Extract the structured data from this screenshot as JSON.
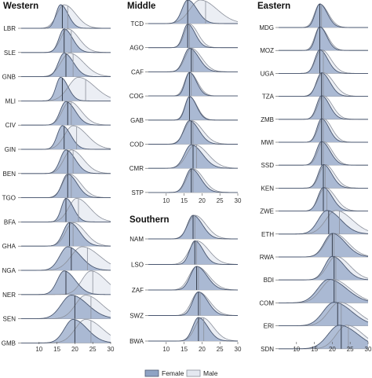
{
  "legend": {
    "female_label": "Female",
    "male_label": "Male",
    "female_color": "#8fa3c4",
    "male_color": "#e4e8f0",
    "female_line": "#4a5770",
    "male_line": "#8a8f9a"
  },
  "chart_data": [
    {
      "type": "area",
      "title": "Western",
      "xlim": [
        5,
        30
      ],
      "xticks": [
        10,
        15,
        20,
        25,
        30
      ],
      "series_names": [
        "Female",
        "Male"
      ],
      "countries": [
        {
          "code": "LBR",
          "female": {
            "mode": 16.0,
            "sd": 1.6,
            "median": 16.5
          },
          "male": {
            "mode": 17.0,
            "sd": 2.5,
            "median": 18.0
          }
        },
        {
          "code": "SLE",
          "female": {
            "mode": 17.0,
            "sd": 1.8,
            "median": 17.0
          },
          "male": {
            "mode": 18.0,
            "sd": 2.4,
            "median": 19.0
          }
        },
        {
          "code": "GNB",
          "female": {
            "mode": 17.0,
            "sd": 2.0,
            "median": 17.5
          },
          "male": {
            "mode": 18.5,
            "sd": 3.0,
            "median": 19.5
          }
        },
        {
          "code": "MLI",
          "female": {
            "mode": 16.0,
            "sd": 1.6,
            "median": 16.5
          },
          "male": {
            "mode": 21.0,
            "sd": 3.5,
            "median": 23.0
          }
        },
        {
          "code": "CIV",
          "female": {
            "mode": 17.5,
            "sd": 2.0,
            "median": 18.0
          },
          "male": {
            "mode": 18.5,
            "sd": 2.5,
            "median": 19.0
          }
        },
        {
          "code": "GIN",
          "female": {
            "mode": 16.5,
            "sd": 1.8,
            "median": 17.0
          },
          "male": {
            "mode": 19.5,
            "sd": 3.0,
            "median": 20.5
          }
        },
        {
          "code": "BEN",
          "female": {
            "mode": 17.5,
            "sd": 2.0,
            "median": 18.0
          },
          "male": {
            "mode": 19.0,
            "sd": 2.6,
            "median": 19.5
          }
        },
        {
          "code": "TGO",
          "female": {
            "mode": 18.0,
            "sd": 2.0,
            "median": 18.0
          },
          "male": {
            "mode": 18.5,
            "sd": 2.4,
            "median": 19.0
          }
        },
        {
          "code": "BFA",
          "female": {
            "mode": 17.5,
            "sd": 1.6,
            "median": 17.5
          },
          "male": {
            "mode": 20.5,
            "sd": 2.8,
            "median": 21.0
          }
        },
        {
          "code": "GHA",
          "female": {
            "mode": 18.5,
            "sd": 2.2,
            "median": 18.5
          },
          "male": {
            "mode": 19.5,
            "sd": 2.6,
            "median": 19.5
          }
        },
        {
          "code": "NGA",
          "female": {
            "mode": 18.0,
            "sd": 2.8,
            "median": 19.0
          },
          "male": {
            "mode": 22.0,
            "sd": 3.8,
            "median": 23.5
          }
        },
        {
          "code": "NER",
          "female": {
            "mode": 17.0,
            "sd": 2.4,
            "median": 17.5
          },
          "male": {
            "mode": 24.5,
            "sd": 3.2,
            "median": 25.0
          }
        },
        {
          "code": "SEN",
          "female": {
            "mode": 19.0,
            "sd": 3.5,
            "median": 20.0
          },
          "male": {
            "mode": 23.0,
            "sd": 3.5,
            "median": 24.5
          }
        },
        {
          "code": "GMB",
          "female": {
            "mode": 19.5,
            "sd": 3.0,
            "median": 20.0
          },
          "male": {
            "mode": 23.0,
            "sd": 3.6,
            "median": 24.5
          }
        }
      ]
    },
    {
      "type": "area",
      "title": "Middle",
      "xlim": [
        5,
        30
      ],
      "xticks": [
        10,
        15,
        20,
        25,
        30
      ],
      "series_names": [
        "Female",
        "Male"
      ],
      "countries": [
        {
          "code": "TCD",
          "female": {
            "mode": 16.0,
            "sd": 2.0,
            "median": 16.0
          },
          "male": {
            "mode": 19.5,
            "sd": 3.6,
            "median": 21.0
          }
        },
        {
          "code": "AGO",
          "female": {
            "mode": 16.0,
            "sd": 1.6,
            "median": 16.0
          },
          "male": {
            "mode": 16.5,
            "sd": 1.8,
            "median": 16.5
          }
        },
        {
          "code": "CAF",
          "female": {
            "mode": 16.5,
            "sd": 2.0,
            "median": 17.0
          },
          "male": {
            "mode": 17.0,
            "sd": 2.2,
            "median": 17.5
          }
        },
        {
          "code": "COG",
          "female": {
            "mode": 16.5,
            "sd": 1.5,
            "median": 16.5
          },
          "male": {
            "mode": 16.5,
            "sd": 1.7,
            "median": 17.0
          }
        },
        {
          "code": "GAB",
          "female": {
            "mode": 16.5,
            "sd": 1.5,
            "median": 16.5
          },
          "male": {
            "mode": 16.5,
            "sd": 1.6,
            "median": 16.5
          }
        },
        {
          "code": "COD",
          "female": {
            "mode": 16.5,
            "sd": 2.0,
            "median": 17.0
          },
          "male": {
            "mode": 17.0,
            "sd": 2.4,
            "median": 17.5
          }
        },
        {
          "code": "CMR",
          "female": {
            "mode": 17.0,
            "sd": 2.4,
            "median": 17.5
          },
          "male": {
            "mode": 18.0,
            "sd": 2.8,
            "median": 18.5
          }
        },
        {
          "code": "STP",
          "female": {
            "mode": 17.0,
            "sd": 2.0,
            "median": 17.0
          },
          "male": {
            "mode": 17.5,
            "sd": 2.2,
            "median": 17.5
          }
        }
      ]
    },
    {
      "type": "area",
      "title": "Southern",
      "xlim": [
        5,
        30
      ],
      "xticks": [
        10,
        15,
        20,
        25,
        30
      ],
      "series_names": [
        "Female",
        "Male"
      ],
      "countries": [
        {
          "code": "NAM",
          "female": {
            "mode": 17.5,
            "sd": 2.0,
            "median": 17.5
          },
          "male": {
            "mode": 18.0,
            "sd": 2.4,
            "median": 18.0
          }
        },
        {
          "code": "LSO",
          "female": {
            "mode": 18.0,
            "sd": 1.8,
            "median": 18.0
          },
          "male": {
            "mode": 18.5,
            "sd": 2.6,
            "median": 18.5
          }
        },
        {
          "code": "ZAF",
          "female": {
            "mode": 18.5,
            "sd": 2.2,
            "median": 18.5
          },
          "male": {
            "mode": 18.5,
            "sd": 2.6,
            "median": 19.0
          }
        },
        {
          "code": "SWZ",
          "female": {
            "mode": 19.0,
            "sd": 2.0,
            "median": 19.0
          },
          "male": {
            "mode": 19.0,
            "sd": 2.4,
            "median": 19.5
          }
        },
        {
          "code": "BWA",
          "female": {
            "mode": 19.0,
            "sd": 2.0,
            "median": 19.0
          },
          "male": {
            "mode": 20.0,
            "sd": 2.4,
            "median": 20.5
          }
        }
      ]
    },
    {
      "type": "area",
      "title": "Eastern",
      "xlim": [
        5,
        30
      ],
      "xticks": [
        10,
        15,
        20,
        25,
        30
      ],
      "series_names": [
        "Female",
        "Male"
      ],
      "countries": [
        {
          "code": "MDG",
          "female": {
            "mode": 16.5,
            "sd": 1.6,
            "median": 16.5
          },
          "male": {
            "mode": 16.5,
            "sd": 1.8,
            "median": 17.0
          }
        },
        {
          "code": "MOZ",
          "female": {
            "mode": 16.5,
            "sd": 1.5,
            "median": 16.5
          },
          "male": {
            "mode": 16.5,
            "sd": 1.7,
            "median": 16.5
          }
        },
        {
          "code": "UGA",
          "female": {
            "mode": 16.5,
            "sd": 1.7,
            "median": 16.5
          },
          "male": {
            "mode": 17.0,
            "sd": 2.0,
            "median": 17.5
          }
        },
        {
          "code": "TZA",
          "female": {
            "mode": 17.0,
            "sd": 1.8,
            "median": 17.0
          },
          "male": {
            "mode": 17.5,
            "sd": 2.2,
            "median": 17.5
          }
        },
        {
          "code": "ZMB",
          "female": {
            "mode": 17.0,
            "sd": 1.7,
            "median": 17.0
          },
          "male": {
            "mode": 17.5,
            "sd": 1.9,
            "median": 17.5
          }
        },
        {
          "code": "MWI",
          "female": {
            "mode": 17.0,
            "sd": 1.6,
            "median": 17.0
          },
          "male": {
            "mode": 17.5,
            "sd": 1.8,
            "median": 17.5
          }
        },
        {
          "code": "SSD",
          "female": {
            "mode": 17.0,
            "sd": 1.8,
            "median": 17.0
          },
          "male": {
            "mode": 17.5,
            "sd": 1.9,
            "median": 17.5
          }
        },
        {
          "code": "KEN",
          "female": {
            "mode": 17.5,
            "sd": 1.8,
            "median": 17.5
          },
          "male": {
            "mode": 18.0,
            "sd": 2.0,
            "median": 18.0
          }
        },
        {
          "code": "ZWE",
          "female": {
            "mode": 17.5,
            "sd": 1.9,
            "median": 17.5
          },
          "male": {
            "mode": 18.0,
            "sd": 2.2,
            "median": 18.5
          }
        },
        {
          "code": "ETH",
          "female": {
            "mode": 18.5,
            "sd": 3.0,
            "median": 19.0
          },
          "male": {
            "mode": 21.0,
            "sd": 3.5,
            "median": 22.0
          }
        },
        {
          "code": "RWA",
          "female": {
            "mode": 20.0,
            "sd": 2.8,
            "median": 20.0
          },
          "male": {
            "mode": 20.5,
            "sd": 3.0,
            "median": 20.5
          }
        },
        {
          "code": "BDI",
          "female": {
            "mode": 20.0,
            "sd": 2.6,
            "median": 20.5
          },
          "male": {
            "mode": 21.0,
            "sd": 3.0,
            "median": 21.0
          }
        },
        {
          "code": "COM",
          "female": {
            "mode": 19.0,
            "sd": 3.8,
            "median": 20.5
          },
          "male": {
            "mode": 20.0,
            "sd": 3.8,
            "median": 21.0
          }
        },
        {
          "code": "ERI",
          "female": {
            "mode": 20.5,
            "sd": 3.8,
            "median": 21.5
          },
          "male": {
            "mode": 22.0,
            "sd": 3.8,
            "median": 22.5
          }
        },
        {
          "code": "SDN",
          "female": {
            "mode": 22.0,
            "sd": 4.0,
            "median": 22.5
          },
          "male": {
            "mode": 24.0,
            "sd": 3.6,
            "median": 24.5
          }
        }
      ]
    }
  ]
}
